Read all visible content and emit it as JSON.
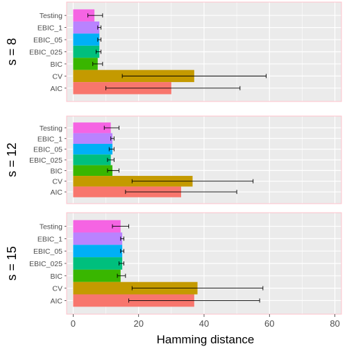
{
  "chart_data": {
    "type": "bar",
    "orientation": "horizontal",
    "facet_layout": "vertical",
    "xlabel": "Hamming distance",
    "xlim": [
      -2,
      82
    ],
    "xticks": [
      0,
      20,
      40,
      60,
      80
    ],
    "grid": true,
    "legend": "none",
    "categories": [
      "Testing",
      "EBIC_1",
      "EBIC_05",
      "EBIC_025",
      "BIC",
      "CV",
      "AIC"
    ],
    "colors": {
      "Testing": "#F564E3",
      "EBIC_1": "#B983FF",
      "EBIC_05": "#00B0F6",
      "EBIC_025": "#00BF7D",
      "BIC": "#39B600",
      "CV": "#C49A00",
      "AIC": "#F8766D"
    },
    "panel_background": "#EBEBEB",
    "grid_color": "#FFFFFF",
    "panel_border_color": "#FFC0CB",
    "facets": [
      {
        "label": "s = 8",
        "values": [
          6.5,
          8,
          8,
          8,
          7.5,
          37,
          30
        ],
        "error_low": [
          4.5,
          7.5,
          7.5,
          7,
          6,
          15,
          10
        ],
        "error_high": [
          9,
          8.5,
          8.5,
          8.5,
          9,
          59,
          51
        ]
      },
      {
        "label": "s = 12",
        "values": [
          11.5,
          12,
          12,
          11.5,
          12,
          36.5,
          33
        ],
        "error_low": [
          9.5,
          11.5,
          11,
          10.5,
          10.5,
          18,
          16
        ],
        "error_high": [
          14,
          12.5,
          12.5,
          12.5,
          14,
          55,
          50
        ]
      },
      {
        "label": "s = 15",
        "values": [
          14.5,
          15,
          15,
          15,
          14.5,
          38,
          37
        ],
        "error_low": [
          12,
          14.5,
          14.5,
          14,
          13.5,
          18,
          17
        ],
        "error_high": [
          17,
          15.5,
          15.5,
          15.5,
          16,
          58,
          57
        ]
      }
    ]
  }
}
